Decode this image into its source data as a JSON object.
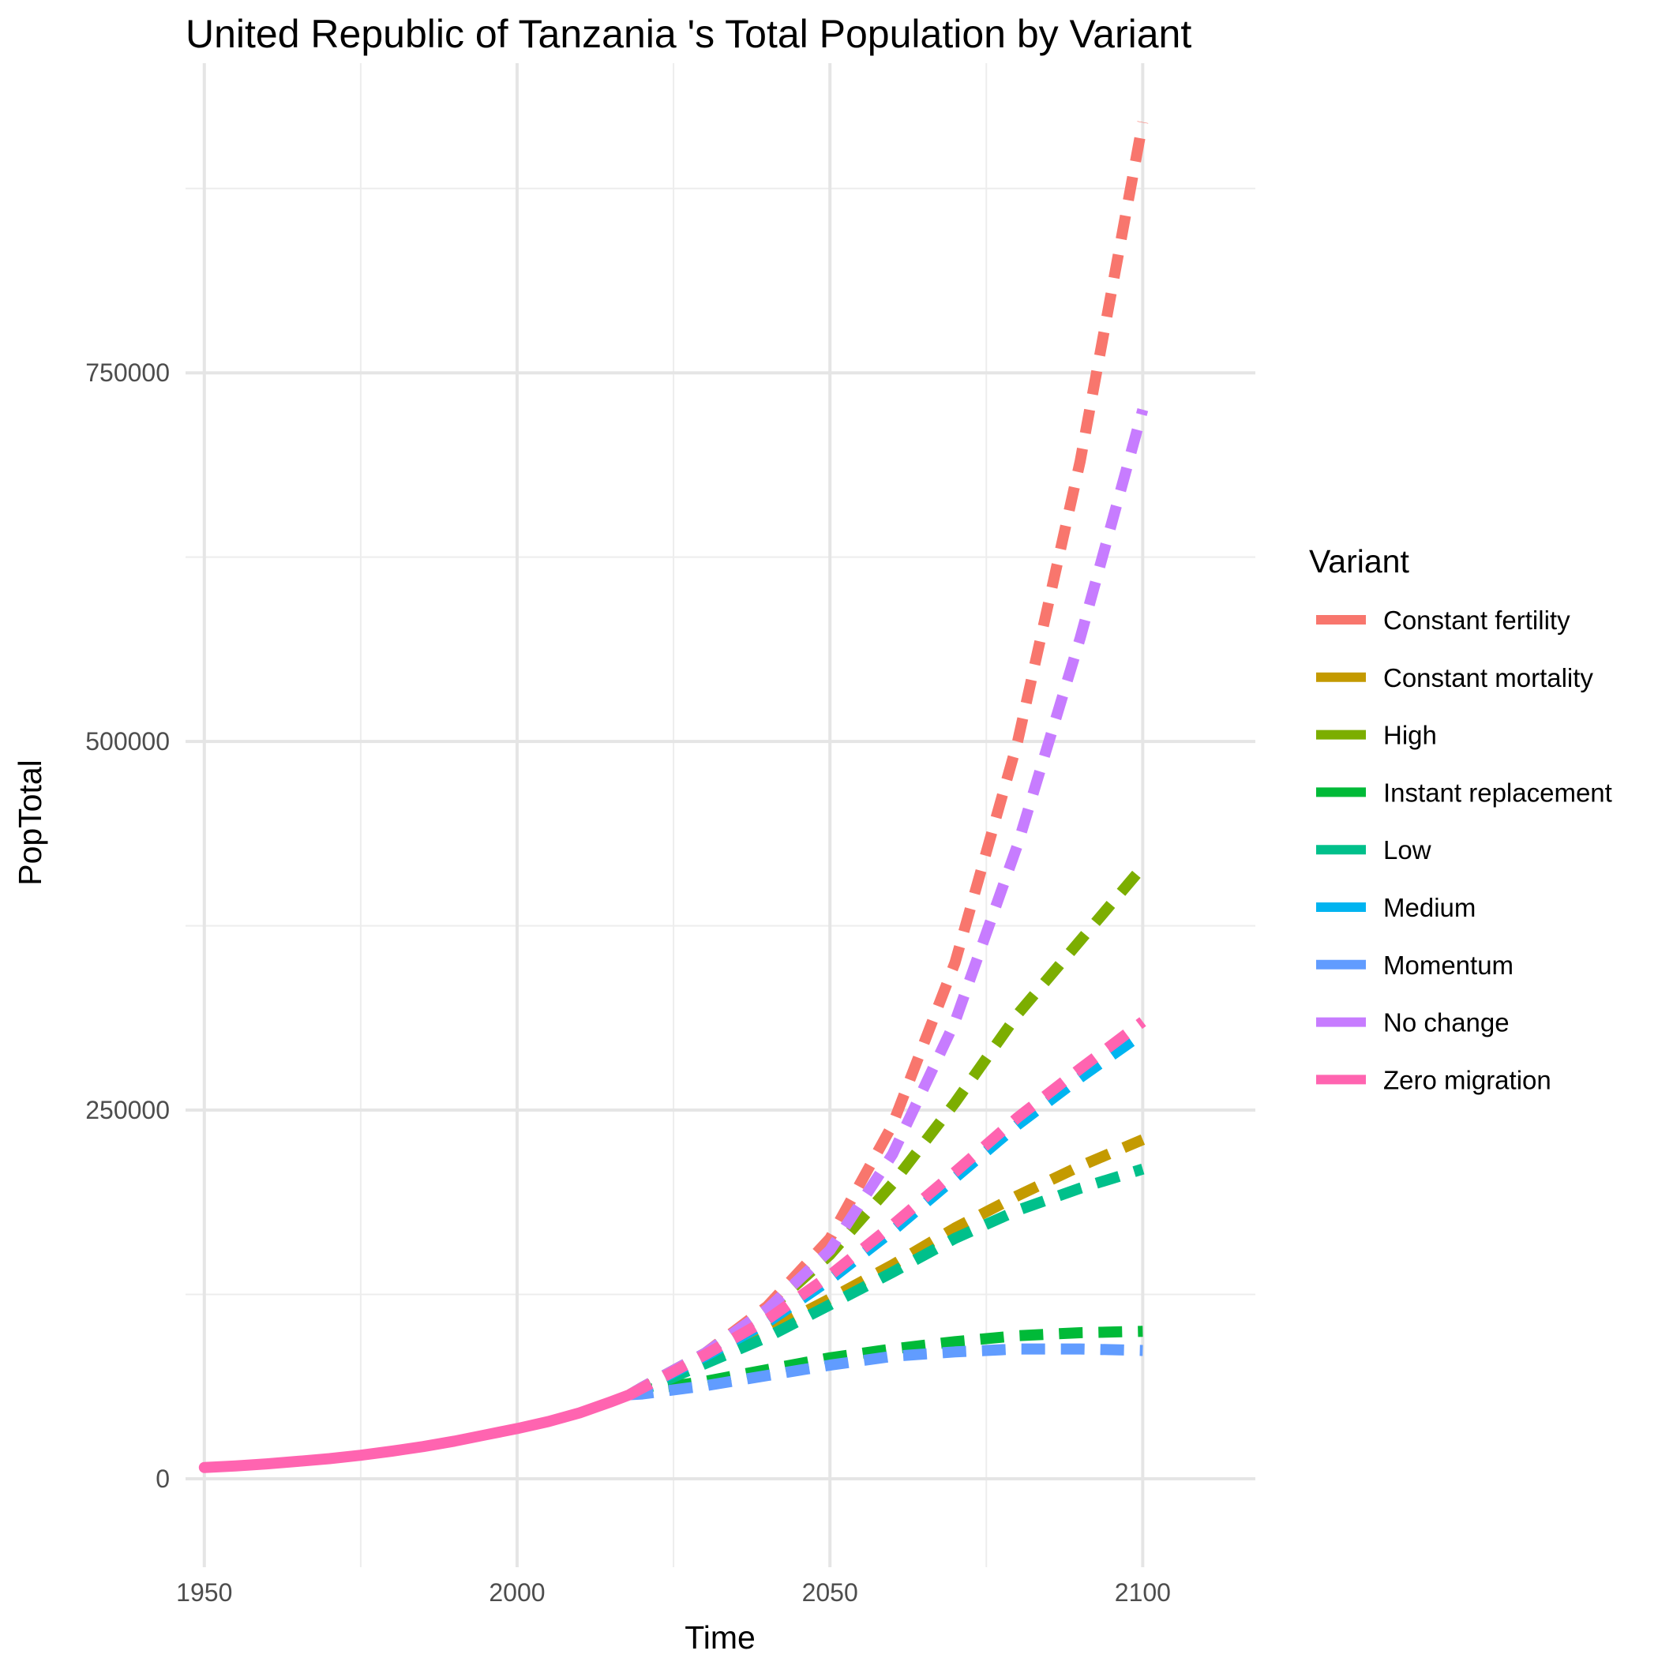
{
  "chart_data": {
    "type": "line",
    "title": "United Republic of Tanzania 's Total Population by Variant",
    "xlabel": "Time",
    "ylabel": "PopTotal",
    "xlim": [
      1947,
      2118
    ],
    "ylim": [
      -60000,
      960000
    ],
    "x_ticks": [
      1950,
      2000,
      2050,
      2100
    ],
    "y_ticks": [
      0,
      250000,
      500000,
      750000
    ],
    "x_tick_labels": [
      "1950",
      "2000",
      "2050",
      "2100"
    ],
    "y_tick_labels": [
      "0",
      "250000",
      "500000",
      "750000"
    ],
    "grid": true,
    "legend": {
      "title": "Variant",
      "position": "right"
    },
    "historical": {
      "name": "Zero migration",
      "x": [
        1950,
        1955,
        1960,
        1965,
        1970,
        1975,
        1980,
        1985,
        1990,
        1995,
        2000,
        2005,
        2010,
        2015,
        2018
      ],
      "values": [
        7600,
        8700,
        10100,
        11800,
        13600,
        15900,
        18700,
        21800,
        25500,
        29800,
        34000,
        38800,
        44700,
        52200,
        57000
      ]
    },
    "projection_x": [
      2018,
      2020,
      2030,
      2040,
      2050,
      2060,
      2070,
      2080,
      2090,
      2100
    ],
    "series": [
      {
        "name": "Constant fertility",
        "color": "#F8766D",
        "values": [
          57000,
          62000,
          85000,
          117000,
          163000,
          240000,
          350000,
          500000,
          690000,
          920000
        ]
      },
      {
        "name": "Constant mortality",
        "color": "#C49A00",
        "values": [
          57000,
          61500,
          80000,
          100000,
          122000,
          145000,
          170000,
          192000,
          212000,
          230000
        ]
      },
      {
        "name": "High",
        "color": "#7CAE00",
        "values": [
          57000,
          62000,
          85000,
          114000,
          152000,
          200000,
          255000,
          315000,
          365000,
          415000
        ]
      },
      {
        "name": "Instant replacement",
        "color": "#00BA38",
        "values": [
          57000,
          60000,
          66000,
          74000,
          82000,
          88000,
          93000,
          97000,
          99000,
          100000
        ]
      },
      {
        "name": "Low",
        "color": "#00C08B",
        "values": [
          57000,
          60000,
          78000,
          96000,
          118000,
          140000,
          163000,
          182000,
          197000,
          210000
        ]
      },
      {
        "name": "Medium",
        "color": "#00B4F0",
        "values": [
          57000,
          61000,
          83000,
          106000,
          135000,
          168000,
          204000,
          240000,
          272000,
          302000
        ]
      },
      {
        "name": "Momentum",
        "color": "#619CFF",
        "values": [
          57000,
          57500,
          63000,
          70000,
          77000,
          83000,
          86000,
          88000,
          88000,
          87000
        ]
      },
      {
        "name": "No change",
        "color": "#C77CFF",
        "values": [
          57000,
          62000,
          85000,
          115000,
          155000,
          220000,
          310000,
          430000,
          570000,
          725000
        ]
      },
      {
        "name": "Zero migration",
        "color": "#FF64B0",
        "values": [
          57000,
          61500,
          84000,
          108000,
          138000,
          172000,
          208000,
          245000,
          278000,
          310000
        ]
      }
    ]
  }
}
